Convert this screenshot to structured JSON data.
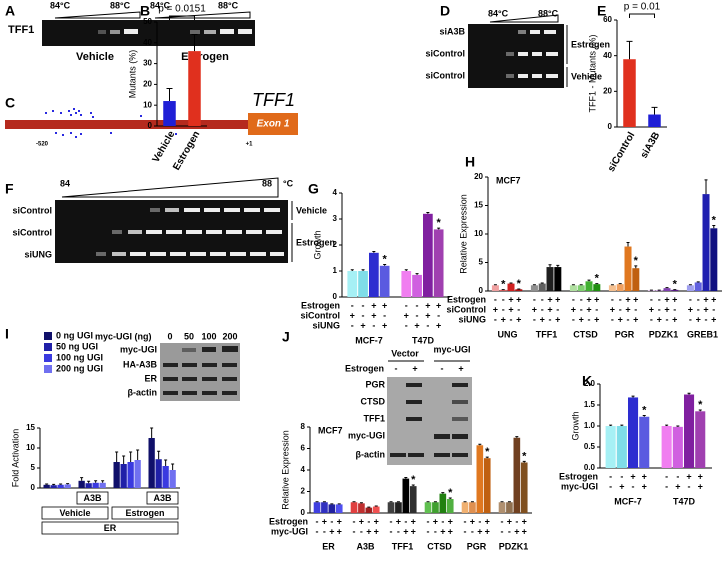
{
  "panel_labels": [
    "A",
    "B",
    "C",
    "D",
    "E",
    "F",
    "G",
    "H",
    "I",
    "J",
    "K"
  ],
  "panel_a": {
    "gene": "TFF1",
    "temp_low": "84°C",
    "temp_high": "88°C",
    "conditions": [
      "Vehicle",
      "Estrogen"
    ]
  },
  "panel_c": {
    "gene": "TFF1",
    "exon": "Exon 1",
    "positions": [
      "-520",
      "+1"
    ]
  },
  "panel_d": {
    "temp_low": "84°C",
    "temp_high": "88°C",
    "rows": [
      "siA3B",
      "siControl",
      "siControl"
    ],
    "groups": [
      "Estrogen",
      "Vehicle"
    ]
  },
  "panel_f": {
    "temp_low": "84",
    "temp_high": "88",
    "unit": "°C",
    "rows": [
      "siControl",
      "siControl",
      "siUNG"
    ],
    "conditions": [
      "Vehicle",
      "Estrogen"
    ]
  },
  "panel_i_blot": {
    "title": "myc-UGI (ng)",
    "lanes": [
      "0",
      "50",
      "100",
      "200"
    ],
    "rows": [
      "myc-UGI",
      "HA-A3B",
      "ER",
      "β-actin"
    ]
  },
  "panel_j_blot": {
    "groups": [
      "Vector",
      "myc-UGI"
    ],
    "treatment": "Estrogen",
    "signs": [
      "-",
      "+",
      "-",
      "+"
    ],
    "rows": [
      "PGR",
      "CTSD",
      "TFF1",
      "myc-UGI",
      "β-actin"
    ]
  },
  "chart_data": [
    {
      "type": "bar",
      "ylabel": "Mutants (%)",
      "categories": [
        "Vehicle",
        "Estrogen"
      ],
      "values": [
        12,
        36
      ],
      "errors": [
        6,
        8
      ],
      "colors": [
        "#1f1fd6",
        "#e0301e"
      ],
      "ylim": [
        0,
        50
      ],
      "yticks": [
        0,
        10,
        20,
        30,
        40,
        50
      ],
      "annotation": "p = 0.0151"
    },
    {
      "type": "bar",
      "ylabel": "TFF1 - Mutants (%)",
      "categories": [
        "siControl",
        "siA3B"
      ],
      "values": [
        38,
        7
      ],
      "errors": [
        10,
        4
      ],
      "colors": [
        "#e0301e",
        "#1f1fd6"
      ],
      "ylim": [
        0,
        60
      ],
      "yticks": [
        0,
        20,
        40,
        60
      ],
      "annotation": "p = 0.01"
    },
    {
      "type": "grouped_bar",
      "ylabel": "Growth",
      "categories": [
        "MCF-7",
        "T47D"
      ],
      "values": [
        [
          1.0,
          1.0,
          1.7,
          1.2
        ],
        [
          1.0,
          0.85,
          3.2,
          2.6
        ]
      ],
      "errors": [
        [
          0.05,
          0.05,
          0.05,
          0.05
        ],
        [
          0.05,
          0.05,
          0.05,
          0.05
        ]
      ],
      "colors": [
        [
          "#a6f0f5",
          "#7fdde8",
          "#2d2dd0",
          "#5a5ae0"
        ],
        [
          "#f07ef0",
          "#d060e0",
          "#8020a0",
          "#a040b0"
        ]
      ],
      "marks": [
        [
          null,
          null,
          null,
          "*"
        ],
        [
          null,
          null,
          null,
          "*"
        ]
      ],
      "conditions": [
        {
          "name": "Estrogen",
          "signs": [
            "-",
            "-",
            "+",
            "+"
          ]
        },
        {
          "name": "siControl",
          "signs": [
            "+",
            "-",
            "+",
            "-"
          ]
        },
        {
          "name": "siUNG",
          "signs": [
            "-",
            "+",
            "-",
            "+"
          ]
        }
      ],
      "ylim": [
        0,
        4
      ],
      "yticks": [
        0,
        1,
        2,
        3,
        4
      ]
    },
    {
      "type": "grouped_bar",
      "ylabel": "Relative Expression",
      "subtitle": "MCF7",
      "categories": [
        "UNG",
        "TFF1",
        "CTSD",
        "PGR",
        "PDZK1",
        "GREB1"
      ],
      "values": [
        [
          1.0,
          0.2,
          1.3,
          0.3
        ],
        [
          1.0,
          1.3,
          4.2,
          4.2
        ],
        [
          1.0,
          1.0,
          1.7,
          1.2
        ],
        [
          1.0,
          1.2,
          7.8,
          4.0
        ],
        [
          0.1,
          0.1,
          0.5,
          0.2
        ],
        [
          1.0,
          1.5,
          17,
          11
        ]
      ],
      "errors": [
        [
          0.1,
          0.05,
          0.1,
          0.05
        ],
        [
          0.1,
          0.1,
          0.4,
          0.3
        ],
        [
          0.1,
          0.1,
          0.2,
          0.1
        ],
        [
          0.1,
          0.1,
          0.7,
          0.4
        ],
        [
          0.05,
          0.05,
          0.1,
          0.05
        ],
        [
          0.1,
          0.1,
          2.5,
          0.5
        ]
      ],
      "colors": [
        [
          "#f0a0a0",
          "#e06060",
          "#d02020",
          "#b01010"
        ],
        [
          "#909090",
          "#606060",
          "#202020",
          "#000000"
        ],
        [
          "#b0e0a0",
          "#80d070",
          "#40b030",
          "#209010"
        ],
        [
          "#f5c090",
          "#f0a060",
          "#e07820",
          "#c06010"
        ],
        [
          "#d0a0e0",
          "#b070d0",
          "#8040b0",
          "#602090"
        ],
        [
          "#a0a0f0",
          "#6060e0",
          "#2020b0",
          "#101080"
        ]
      ],
      "marks": [
        [
          null,
          "*",
          null,
          "*"
        ],
        [
          null,
          null,
          null,
          null
        ],
        [
          null,
          null,
          null,
          "*"
        ],
        [
          null,
          null,
          null,
          "*"
        ],
        [
          null,
          null,
          null,
          "*"
        ],
        [
          null,
          null,
          null,
          "*"
        ]
      ],
      "conditions": [
        {
          "name": "Estrogen",
          "signs": [
            "-",
            "-",
            "+",
            "+"
          ]
        },
        {
          "name": "siControl",
          "signs": [
            "+",
            "-",
            "+",
            "-"
          ]
        },
        {
          "name": "siUNG",
          "signs": [
            "-",
            "+",
            "-",
            "+"
          ]
        }
      ],
      "ylim": [
        0,
        20
      ],
      "yticks": [
        0,
        5,
        10,
        15,
        20
      ]
    },
    {
      "type": "grouped_bar",
      "ylabel": "Fold Activation",
      "categories": [
        null,
        null,
        null,
        null
      ],
      "series": [
        {
          "name": "0 ng UGI",
          "color": "#10106a",
          "values": [
            0.8,
            1.8,
            6.5,
            12.5
          ],
          "errors": [
            0.2,
            0.8,
            2.5,
            2.5
          ]
        },
        {
          "name": "50 ng UGI",
          "color": "#2020a8",
          "values": [
            0.7,
            1.2,
            6.0,
            7.2
          ],
          "errors": [
            0.2,
            0.5,
            2.0,
            2.0
          ]
        },
        {
          "name": "100 ng UGI",
          "color": "#3a3ae0",
          "values": [
            0.8,
            1.3,
            6.5,
            5.5
          ],
          "errors": [
            0.2,
            0.5,
            2.5,
            1.5
          ]
        },
        {
          "name": "200 ng UGI",
          "color": "#7070f0",
          "values": [
            0.9,
            1.3,
            7.0,
            4.5
          ],
          "errors": [
            0.2,
            0.5,
            2.5,
            1.5
          ]
        }
      ],
      "bottom_rows": [
        [
          "A3B",
          "A3B"
        ],
        [
          "Vehicle",
          "Estrogen"
        ],
        [
          "ER"
        ]
      ],
      "ylim": [
        0,
        15
      ],
      "yticks": [
        0,
        5,
        10,
        15
      ]
    },
    {
      "type": "grouped_bar",
      "ylabel": "Relative Expression",
      "subtitle": "MCF7",
      "categories": [
        "ER",
        "A3B",
        "TFF1",
        "CTSD",
        "PGR",
        "PDZK1"
      ],
      "values": [
        [
          1.0,
          1.0,
          0.8,
          0.8
        ],
        [
          1.0,
          0.9,
          0.5,
          0.6
        ],
        [
          1.0,
          1.0,
          3.2,
          2.5
        ],
        [
          1.0,
          1.0,
          1.8,
          1.3
        ],
        [
          1.0,
          1.0,
          6.3,
          5.1
        ],
        [
          1.0,
          1.0,
          7.0,
          4.7
        ]
      ],
      "errors": [
        [
          0.05,
          0.05,
          0.05,
          0.05
        ],
        [
          0.05,
          0.05,
          0.05,
          0.05
        ],
        [
          0.05,
          0.05,
          0.1,
          0.1
        ],
        [
          0.05,
          0.05,
          0.1,
          0.1
        ],
        [
          0.05,
          0.05,
          0.1,
          0.1
        ],
        [
          0.05,
          0.05,
          0.1,
          0.1
        ]
      ],
      "colors": [
        [
          "#4040e0",
          "#3030c0",
          "#2020a0",
          "#5050f0"
        ],
        [
          "#e04040",
          "#c03030",
          "#a02020",
          "#f05050"
        ],
        [
          "#404040",
          "#202020",
          "#000000",
          "#303030"
        ],
        [
          "#60c050",
          "#40a030",
          "#208010",
          "#50b040"
        ],
        [
          "#f0b070",
          "#e09050",
          "#e07820",
          "#c06010"
        ],
        [
          "#b09070",
          "#907050",
          "#704020",
          "#805020"
        ]
      ],
      "marks": [
        [
          null,
          null,
          null,
          null
        ],
        [
          null,
          null,
          null,
          null
        ],
        [
          null,
          null,
          null,
          "*"
        ],
        [
          null,
          null,
          null,
          "*"
        ],
        [
          null,
          null,
          null,
          "*"
        ],
        [
          null,
          null,
          null,
          "*"
        ]
      ],
      "conditions": [
        {
          "name": "Estrogen",
          "signs": [
            "-",
            "+",
            "-",
            "+"
          ]
        },
        {
          "name": "myc-UGI",
          "signs": [
            "-",
            "-",
            "+",
            "+"
          ]
        }
      ],
      "ylim": [
        0,
        8
      ],
      "yticks": [
        0,
        2,
        4,
        6,
        8
      ]
    },
    {
      "type": "grouped_bar",
      "ylabel": "Growth",
      "categories": [
        "MCF-7",
        "T47D"
      ],
      "values": [
        [
          1.0,
          1.0,
          1.68,
          1.22
        ],
        [
          1.0,
          0.98,
          1.75,
          1.35
        ]
      ],
      "errors": [
        [
          0.02,
          0.02,
          0.03,
          0.03
        ],
        [
          0.02,
          0.02,
          0.03,
          0.03
        ]
      ],
      "colors": [
        [
          "#a6f0f5",
          "#7fdde8",
          "#2d2dd0",
          "#5a5ae0"
        ],
        [
          "#f07ef0",
          "#d060e0",
          "#8020a0",
          "#a040b0"
        ]
      ],
      "marks": [
        [
          null,
          null,
          null,
          "*"
        ],
        [
          null,
          null,
          null,
          "*"
        ]
      ],
      "conditions": [
        {
          "name": "Estrogen",
          "signs": [
            "-",
            "-",
            "+",
            "+"
          ]
        },
        {
          "name": "myc-UGI",
          "signs": [
            "-",
            "+",
            "-",
            "+"
          ]
        }
      ],
      "ylim": [
        0,
        2
      ],
      "yticks": [
        {
          "value": 0,
          "label": "0.0"
        },
        0.5,
        {
          "value": 1,
          "label": "1.0"
        },
        1.5,
        {
          "value": 2,
          "label": "2.0"
        }
      ]
    }
  ]
}
